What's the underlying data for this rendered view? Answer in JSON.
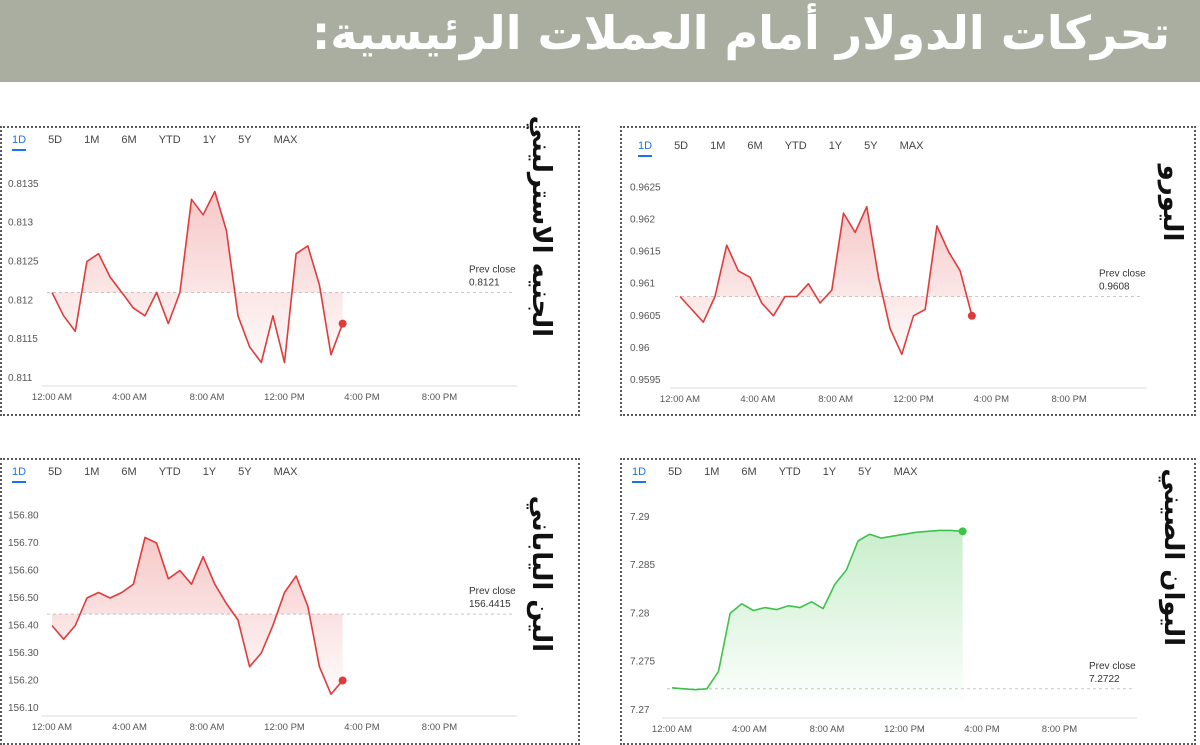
{
  "banner": {
    "title": "تحركات الدولار أمام العملات الرئيسية:"
  },
  "tabs": [
    "1D",
    "5D",
    "1M",
    "6M",
    "YTD",
    "1Y",
    "5Y",
    "MAX"
  ],
  "prev_close_label": "Prev close",
  "colors": {
    "down_line": "#e03b3b",
    "up_line": "#3fc24a",
    "banner": "#a9aea1"
  },
  "panels": {
    "gbp": {
      "label": "الجنيه الاسترليني"
    },
    "eur": {
      "label": "اليورو"
    },
    "jpy": {
      "label": "الين الياباني"
    },
    "cny": {
      "label": "اليوان الصيني"
    }
  },
  "chart_data": [
    {
      "type": "line",
      "series": [
        {
          "values": [
            0.8121,
            0.8118,
            0.8116,
            0.8125,
            0.8126,
            0.8123,
            0.8121,
            0.8119,
            0.8118,
            0.8121,
            0.8117,
            0.8121,
            0.8133,
            0.8131,
            0.8134,
            0.8129,
            0.8118,
            0.8114,
            0.8112,
            0.8118,
            0.8112,
            0.8126,
            0.8127,
            0.8122,
            0.8113,
            0.8117
          ]
        }
      ],
      "x_start_min": 0,
      "x_end_min": 900,
      "x_ticks": [
        "12:00 AM",
        "4:00 AM",
        "8:00 AM",
        "12:00 PM",
        "4:00 PM",
        "8:00 PM"
      ],
      "y_ticks": [
        "0.8135",
        "0.813",
        "0.8125",
        "0.812",
        "0.8115",
        "0.811"
      ],
      "ylim": [
        0.811,
        0.8136
      ],
      "prev_close": 0.8121,
      "prev_close_text": "0.8121",
      "trend": "down"
    },
    {
      "type": "line",
      "series": [
        {
          "values": [
            0.9608,
            0.9606,
            0.9604,
            0.9608,
            0.9616,
            0.9612,
            0.9611,
            0.9607,
            0.9605,
            0.9608,
            0.9608,
            0.961,
            0.9607,
            0.9609,
            0.9621,
            0.9618,
            0.9622,
            0.9611,
            0.9603,
            0.9599,
            0.9605,
            0.9606,
            0.9619,
            0.9615,
            0.9612,
            0.9605
          ]
        }
      ],
      "x_start_min": 0,
      "x_end_min": 900,
      "x_ticks": [
        "12:00 AM",
        "4:00 AM",
        "8:00 AM",
        "12:00 PM",
        "4:00 PM",
        "8:00 PM"
      ],
      "y_ticks": [
        "0.9625",
        "0.962",
        "0.9615",
        "0.961",
        "0.9605",
        "0.96",
        "0.9595"
      ],
      "ylim": [
        0.9595,
        0.9626
      ],
      "prev_close": 0.9608,
      "prev_close_text": "0.9608",
      "trend": "down"
    },
    {
      "type": "line",
      "series": [
        {
          "values": [
            156.4,
            156.35,
            156.4,
            156.5,
            156.52,
            156.5,
            156.52,
            156.55,
            156.72,
            156.7,
            156.57,
            156.6,
            156.55,
            156.65,
            156.55,
            156.48,
            156.42,
            156.25,
            156.3,
            156.4,
            156.52,
            156.58,
            156.47,
            156.25,
            156.15,
            156.2
          ]
        }
      ],
      "x_start_min": 0,
      "x_end_min": 900,
      "x_ticks": [
        "12:00 AM",
        "4:00 AM",
        "8:00 AM",
        "12:00 PM",
        "4:00 PM",
        "8:00 PM"
      ],
      "y_ticks": [
        "156.80",
        "156.70",
        "156.60",
        "156.50",
        "156.40",
        "156.30",
        "156.20",
        "156.10"
      ],
      "ylim": [
        156.1,
        156.82
      ],
      "prev_close": 156.4415,
      "prev_close_text": "156.4415",
      "trend": "down"
    },
    {
      "type": "line",
      "series": [
        {
          "values": [
            7.2723,
            7.2722,
            7.2721,
            7.2722,
            7.274,
            7.28,
            7.281,
            7.2803,
            7.2806,
            7.2804,
            7.2808,
            7.2806,
            7.2812,
            7.2805,
            7.283,
            7.2845,
            7.2875,
            7.2882,
            7.2878,
            7.288,
            7.2882,
            7.2884,
            7.2885,
            7.2886,
            7.2886,
            7.2885
          ]
        }
      ],
      "x_start_min": 0,
      "x_end_min": 900,
      "x_ticks": [
        "12:00 AM",
        "4:00 AM",
        "8:00 AM",
        "12:00 PM",
        "4:00 PM",
        "8:00 PM"
      ],
      "y_ticks": [
        "7.29",
        "7.285",
        "7.28",
        "7.275",
        "7.27"
      ],
      "ylim": [
        7.27,
        7.2905
      ],
      "prev_close": 7.2722,
      "prev_close_text": "7.2722",
      "trend": "up"
    }
  ]
}
